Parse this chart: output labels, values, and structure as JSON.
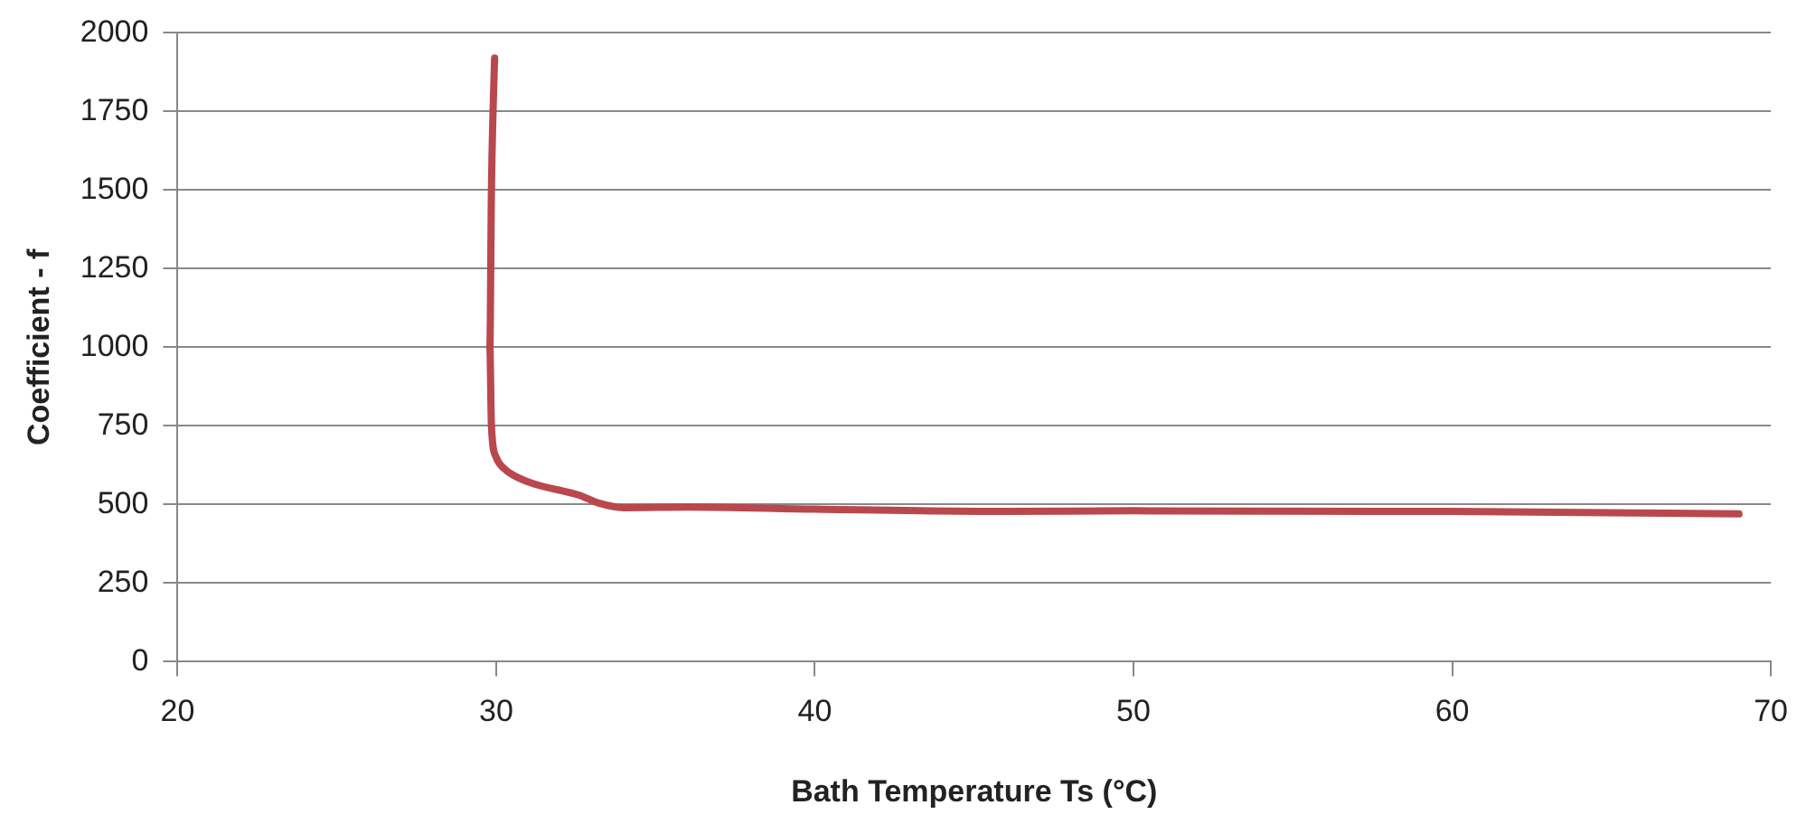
{
  "chart_data": {
    "type": "line",
    "xlabel": "Bath Temperature Ts (°C)",
    "ylabel": "Coefficient - f",
    "xlim": [
      20,
      70
    ],
    "xticks": [
      20,
      30,
      40,
      50,
      60,
      70
    ],
    "ylim": [
      0,
      2000
    ],
    "yticks": [
      0,
      250,
      500,
      750,
      1000,
      1250,
      1500,
      1750,
      2000
    ],
    "grid": "y",
    "legend": false,
    "marker": "none",
    "line_style": "solid",
    "series": [
      {
        "color": "#b9484e",
        "x": [
          29.95,
          29.9,
          29.85,
          29.8,
          29.85,
          30,
          30.3,
          30.7,
          31.2,
          32,
          32.6,
          33.2,
          34,
          36,
          40,
          46,
          50,
          60,
          69
        ],
        "values": [
          1920,
          1750,
          1500,
          1000,
          750,
          650,
          610,
          585,
          565,
          545,
          530,
          505,
          490,
          492,
          485,
          478,
          480,
          478,
          470
        ]
      }
    ]
  }
}
